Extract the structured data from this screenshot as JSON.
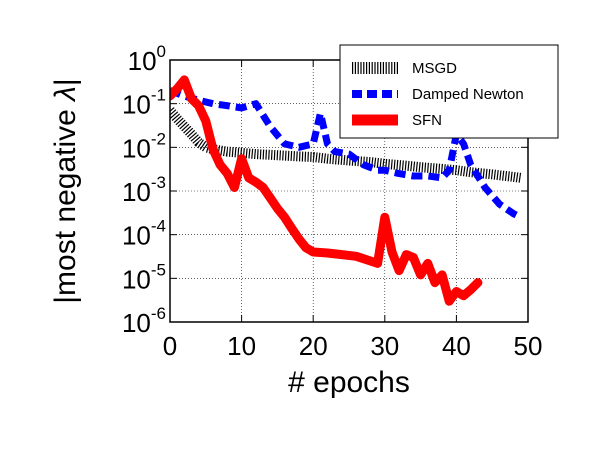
{
  "chart_data": {
    "type": "line",
    "xlabel": "# epochs",
    "ylabel_prefix": "|most negative ",
    "ylabel_symbol": "λ",
    "ylabel_suffix": "|",
    "xlim": [
      0,
      50
    ],
    "ylim": [
      1e-06,
      1
    ],
    "yscale": "log",
    "grid": true,
    "legend": "top-right",
    "x_ticks": [
      "0",
      "10",
      "20",
      "30",
      "40",
      "50"
    ],
    "y_ticks": [
      {
        "base": "10",
        "exp": "-6"
      },
      {
        "base": "10",
        "exp": "-5"
      },
      {
        "base": "10",
        "exp": "-4"
      },
      {
        "base": "10",
        "exp": "-3"
      },
      {
        "base": "10",
        "exp": "-2"
      },
      {
        "base": "10",
        "exp": "-1"
      },
      {
        "base": "10",
        "exp": "0"
      }
    ],
    "series": [
      {
        "name": "MSGD",
        "color": "#000000",
        "style": "hatched",
        "x": [
          0,
          1,
          2,
          3,
          4,
          5,
          6,
          8,
          10,
          12,
          15,
          18,
          20,
          22,
          25,
          28,
          30,
          33,
          35,
          38,
          40,
          42,
          45,
          48,
          49
        ],
        "y": [
          0.07,
          0.045,
          0.03,
          0.02,
          0.013,
          0.01,
          0.009,
          0.008,
          0.0075,
          0.007,
          0.0066,
          0.0062,
          0.006,
          0.0055,
          0.005,
          0.0046,
          0.0042,
          0.0038,
          0.0035,
          0.0032,
          0.003,
          0.0027,
          0.0024,
          0.0021,
          0.002
        ]
      },
      {
        "name": "Damped Newton",
        "color": "#0000ff",
        "style": "dashed",
        "x": [
          0,
          2,
          4,
          6,
          8,
          10,
          12,
          14,
          16,
          18,
          20,
          21,
          22,
          23,
          25,
          27,
          29,
          30,
          32,
          34,
          36,
          38,
          39,
          40,
          41,
          42,
          44,
          46,
          48,
          49
        ],
        "y": [
          0.2,
          0.15,
          0.12,
          0.1,
          0.09,
          0.08,
          0.1,
          0.03,
          0.012,
          0.01,
          0.012,
          0.06,
          0.012,
          0.008,
          0.007,
          0.004,
          0.003,
          0.003,
          0.0025,
          0.0022,
          0.0022,
          0.002,
          0.003,
          0.02,
          0.012,
          0.004,
          0.0012,
          0.0005,
          0.0003,
          0.00025
        ]
      },
      {
        "name": "SFN",
        "color": "#ff0000",
        "style": "solid",
        "x": [
          0,
          1,
          2,
          3,
          4,
          5,
          6,
          7,
          8,
          9,
          10,
          11,
          12,
          13,
          14,
          15,
          16,
          17,
          18,
          19,
          20,
          22,
          24,
          26,
          28,
          29,
          30,
          31,
          32,
          33,
          34,
          35,
          36,
          37,
          38,
          39,
          40,
          41,
          42,
          43
        ],
        "y": [
          0.15,
          0.22,
          0.35,
          0.13,
          0.09,
          0.04,
          0.009,
          0.004,
          0.0025,
          0.0012,
          0.0055,
          0.002,
          0.0016,
          0.0012,
          0.0007,
          0.0004,
          0.00025,
          0.00014,
          8e-05,
          5e-05,
          4e-05,
          3.8e-05,
          3.5e-05,
          3.2e-05,
          2.5e-05,
          2.2e-05,
          0.00025,
          4e-05,
          1.5e-05,
          3.5e-05,
          3e-05,
          1.2e-05,
          2.2e-05,
          8e-06,
          1.2e-05,
          3e-06,
          5e-06,
          4e-06,
          5.5e-06,
          8e-06
        ]
      }
    ]
  }
}
